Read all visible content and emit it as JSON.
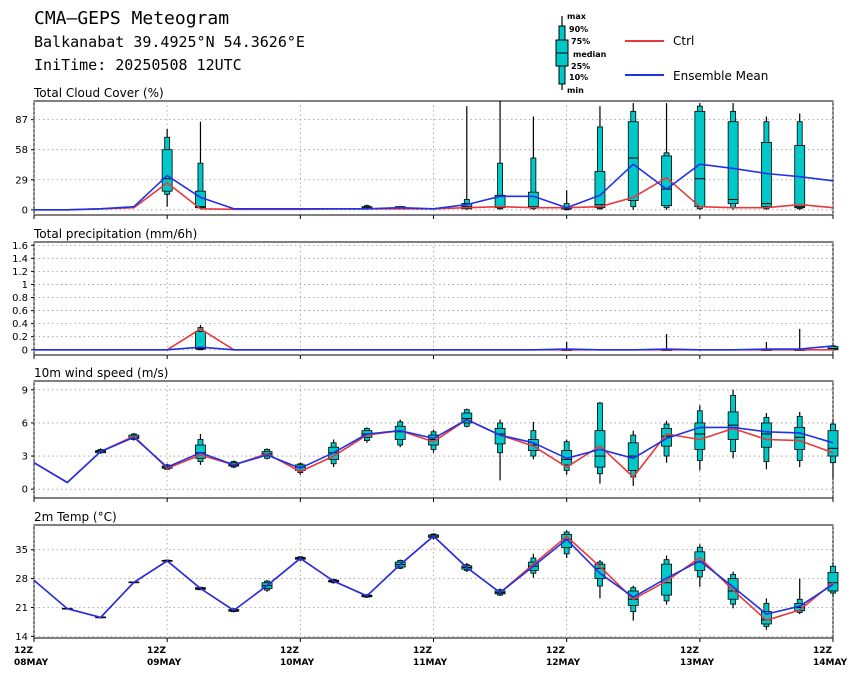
{
  "header": {
    "title": "CMA—GEPS Meteogram",
    "location": "Balkanabat 39.4925°N 54.3626°E",
    "init_time": "IniTime: 20250508 12UTC"
  },
  "legend": {
    "box_labels": [
      "max",
      "90%",
      "75%",
      "median",
      "25%",
      "10%",
      "min"
    ],
    "ctrl_label": "Ctrl",
    "mean_label": "Ensemble Mean",
    "ctrl_color": "#e8383d",
    "mean_color": "#1f32e8",
    "box_color": "#00c8c8"
  },
  "x_axis": {
    "ticks": [
      {
        "hour": "12Z",
        "date": "08MAY"
      },
      {
        "hour": "12Z",
        "date": "09MAY"
      },
      {
        "hour": "12Z",
        "date": "10MAY"
      },
      {
        "hour": "12Z",
        "date": "11MAY"
      },
      {
        "hour": "12Z",
        "date": "12MAY"
      },
      {
        "hour": "12Z",
        "date": "13MAY"
      },
      {
        "hour": "12Z",
        "date": "14MAY"
      }
    ]
  },
  "chart_data": [
    {
      "type": "boxplot-line",
      "title": "Total Cloud Cover (%)",
      "x": [
        "08MAY 12Z",
        "08MAY 18Z",
        "09MAY 00Z",
        "09MAY 06Z",
        "09MAY 12Z",
        "09MAY 18Z",
        "10MAY 00Z",
        "10MAY 06Z",
        "10MAY 12Z",
        "10MAY 18Z",
        "11MAY 00Z",
        "11MAY 06Z",
        "11MAY 12Z",
        "11MAY 18Z",
        "12MAY 00Z",
        "12MAY 06Z",
        "12MAY 12Z",
        "12MAY 18Z",
        "13MAY 00Z",
        "13MAY 06Z",
        "13MAY 12Z",
        "13MAY 18Z",
        "14MAY 00Z",
        "14MAY 06Z",
        "14MAY 12Z"
      ],
      "yticks": [
        0,
        29,
        58,
        87
      ],
      "ylim": [
        -5,
        105
      ],
      "ctrl": [
        0,
        0,
        1,
        2,
        26,
        1,
        0.5,
        0.5,
        0.5,
        1,
        1,
        1,
        1,
        2,
        3,
        2,
        2,
        3,
        12,
        31,
        3,
        2,
        2,
        5,
        2
      ],
      "mean": [
        0,
        0,
        1,
        3,
        33,
        12,
        1,
        1,
        1,
        1,
        1,
        2,
        1,
        5,
        13,
        13,
        2,
        14,
        44,
        20,
        44,
        40,
        35,
        32,
        28
      ],
      "boxes": [
        null,
        null,
        null,
        null,
        [
          3,
          15,
          18,
          30,
          58,
          70,
          78
        ],
        [
          1,
          2,
          2,
          3,
          18,
          45,
          85
        ],
        null,
        null,
        null,
        null,
        [
          0,
          1,
          1,
          2,
          3,
          4,
          5
        ],
        [
          1,
          1,
          1,
          2,
          3,
          3,
          3
        ],
        null,
        [
          0,
          1,
          1,
          3,
          6,
          10,
          100
        ],
        [
          0,
          1,
          2,
          3,
          14,
          45,
          105
        ],
        [
          0,
          1,
          2,
          3,
          17,
          50,
          90
        ],
        [
          0,
          0,
          1,
          1,
          2,
          6,
          19
        ],
        [
          0,
          1,
          2,
          5,
          37,
          80,
          100
        ],
        [
          0,
          3,
          9,
          50,
          85,
          95,
          103
        ],
        [
          0,
          2,
          4,
          20,
          52,
          55,
          103
        ],
        [
          0,
          1,
          3,
          30,
          95,
          100,
          103
        ],
        [
          0,
          2,
          6,
          10,
          85,
          95,
          103
        ],
        [
          0,
          1,
          3,
          6,
          65,
          85,
          90
        ],
        [
          0,
          1,
          2,
          3,
          62,
          85,
          93
        ]
      ]
    },
    {
      "type": "boxplot-line",
      "title": "Total precipitation (mm/6h)",
      "x": [
        "08MAY 12Z",
        "08MAY 18Z",
        "09MAY 00Z",
        "09MAY 06Z",
        "09MAY 12Z",
        "09MAY 18Z",
        "10MAY 00Z",
        "10MAY 06Z",
        "10MAY 12Z",
        "10MAY 18Z",
        "11MAY 00Z",
        "11MAY 06Z",
        "11MAY 12Z",
        "11MAY 18Z",
        "12MAY 00Z",
        "12MAY 06Z",
        "12MAY 12Z",
        "12MAY 18Z",
        "13MAY 00Z",
        "13MAY 06Z",
        "13MAY 12Z",
        "13MAY 18Z",
        "14MAY 00Z",
        "14MAY 06Z",
        "14MAY 12Z"
      ],
      "yticks": [
        0,
        0.2,
        0.4,
        0.6,
        0.8,
        1,
        1.2,
        1.4,
        1.6
      ],
      "ytick_labels": [
        "0",
        "0.2",
        "0.4",
        "0.6",
        "0.8",
        "1",
        "1.2",
        "1.4",
        "1.6"
      ],
      "ylim": [
        -0.08,
        1.65
      ],
      "ctrl": [
        0,
        0,
        0,
        0,
        0,
        0.32,
        0,
        0,
        0,
        0,
        0,
        0,
        0,
        0,
        0,
        0,
        0,
        0,
        0,
        0,
        0,
        0,
        0,
        0,
        0
      ],
      "mean": [
        0,
        0,
        0,
        0,
        0,
        0.04,
        0,
        0,
        0,
        0,
        0,
        0,
        0,
        0,
        0,
        0,
        0.01,
        0,
        0,
        0.01,
        0,
        0,
        0.01,
        0.01,
        0.06
      ],
      "boxes": [
        null,
        null,
        null,
        null,
        null,
        [
          0,
          0,
          0.01,
          0.02,
          0.28,
          0.34,
          0.38
        ],
        null,
        null,
        null,
        null,
        null,
        null,
        null,
        null,
        null,
        null,
        [
          0,
          0,
          0,
          0,
          0,
          0,
          0.12
        ],
        null,
        null,
        [
          0,
          0,
          0,
          0,
          0,
          0,
          0.24
        ],
        null,
        null,
        [
          0,
          0,
          0,
          0,
          0,
          0,
          0.12
        ],
        [
          0,
          0,
          0,
          0,
          0,
          0,
          0.32
        ],
        [
          0,
          0,
          0,
          0.02,
          0.05,
          0.06,
          0.07
        ]
      ]
    },
    {
      "type": "boxplot-line",
      "title": "10m wind speed (m/s)",
      "x": [
        "08MAY 12Z",
        "08MAY 18Z",
        "09MAY 00Z",
        "09MAY 06Z",
        "09MAY 12Z",
        "09MAY 18Z",
        "10MAY 00Z",
        "10MAY 06Z",
        "10MAY 12Z",
        "10MAY 18Z",
        "11MAY 00Z",
        "11MAY 06Z",
        "11MAY 12Z",
        "11MAY 18Z",
        "12MAY 00Z",
        "12MAY 06Z",
        "12MAY 12Z",
        "12MAY 18Z",
        "13MAY 00Z",
        "13MAY 06Z",
        "13MAY 12Z",
        "13MAY 18Z",
        "14MAY 00Z",
        "14MAY 06Z",
        "14MAY 12Z"
      ],
      "yticks": [
        0,
        3,
        6,
        9
      ],
      "ylim": [
        -0.8,
        9.8
      ],
      "ctrl": [
        2.4,
        0.6,
        3.4,
        4.8,
        1.9,
        3.1,
        2.2,
        3.2,
        1.6,
        3.0,
        4.9,
        5.3,
        4.3,
        6.3,
        4.9,
        3.9,
        2.0,
        3.9,
        1.1,
        5.0,
        4.5,
        5.5,
        4.5,
        4.4,
        3.3
      ],
      "mean": [
        2.4,
        0.6,
        3.4,
        4.7,
        2.0,
        3.3,
        2.2,
        3.1,
        1.9,
        3.3,
        5.0,
        5.3,
        4.6,
        6.3,
        4.9,
        4.2,
        2.8,
        3.6,
        2.8,
        4.6,
        5.6,
        5.6,
        5.2,
        5.1,
        4.2
      ],
      "boxes": [
        null,
        null,
        [
          3.2,
          3.3,
          3.3,
          3.4,
          3.5,
          3.6,
          3.7
        ],
        [
          4.4,
          4.5,
          4.6,
          4.7,
          4.9,
          5.0,
          5.1
        ],
        [
          1.8,
          1.8,
          1.9,
          2.0,
          2.1,
          2.2,
          2.3
        ],
        [
          2.2,
          2.5,
          2.8,
          3.3,
          4.0,
          4.5,
          5.0
        ],
        [
          1.9,
          2.0,
          2.1,
          2.2,
          2.4,
          2.5,
          2.6
        ],
        [
          2.7,
          2.8,
          3.0,
          3.2,
          3.4,
          3.6,
          3.7
        ],
        [
          1.3,
          1.5,
          1.7,
          2.0,
          2.2,
          2.3,
          2.4
        ],
        [
          2.0,
          2.3,
          2.7,
          3.3,
          3.8,
          4.2,
          4.5
        ],
        [
          4.2,
          4.4,
          4.7,
          5.0,
          5.3,
          5.5,
          5.6
        ],
        [
          3.8,
          4.0,
          4.5,
          5.2,
          5.7,
          6.1,
          6.3
        ],
        [
          3.3,
          3.6,
          4.0,
          4.5,
          4.9,
          5.2,
          5.4
        ],
        [
          5.6,
          5.7,
          6.0,
          6.4,
          6.9,
          7.2,
          7.3
        ],
        [
          0.8,
          3.3,
          4.1,
          5.0,
          5.5,
          6.0,
          6.3
        ],
        [
          2.7,
          3.0,
          3.5,
          4.0,
          4.5,
          5.3,
          6.1
        ],
        [
          1.3,
          1.7,
          2.2,
          2.7,
          3.5,
          4.3,
          4.5
        ],
        [
          0.5,
          1.4,
          2.0,
          3.0,
          5.3,
          7.8,
          7.9
        ],
        [
          0.3,
          1.1,
          1.7,
          3.0,
          4.2,
          4.9,
          5.3
        ],
        [
          2.4,
          3.0,
          3.9,
          4.8,
          5.5,
          5.9,
          6.2
        ],
        [
          1.7,
          2.6,
          3.6,
          5.0,
          6.0,
          7.1,
          7.6
        ],
        [
          2.8,
          3.4,
          4.5,
          5.8,
          7.0,
          8.5,
          9.0
        ],
        [
          1.8,
          2.5,
          3.8,
          5.0,
          6.0,
          6.5,
          6.9
        ],
        [
          2.0,
          2.6,
          3.6,
          4.7,
          5.6,
          6.6,
          7.0
        ],
        [
          1.0,
          2.4,
          3.0,
          3.7,
          5.3,
          5.9,
          6.3
        ]
      ]
    },
    {
      "type": "boxplot-line",
      "title": "2m Temp (°C)",
      "x": [
        "08MAY 12Z",
        "08MAY 18Z",
        "09MAY 00Z",
        "09MAY 06Z",
        "09MAY 12Z",
        "09MAY 18Z",
        "10MAY 00Z",
        "10MAY 06Z",
        "10MAY 12Z",
        "10MAY 18Z",
        "11MAY 00Z",
        "11MAY 06Z",
        "11MAY 12Z",
        "11MAY 18Z",
        "12MAY 00Z",
        "12MAY 06Z",
        "12MAY 12Z",
        "12MAY 18Z",
        "13MAY 00Z",
        "13MAY 06Z",
        "13MAY 12Z",
        "13MAY 18Z",
        "14MAY 00Z",
        "14MAY 06Z",
        "14MAY 12Z"
      ],
      "yticks": [
        14,
        21,
        28,
        35
      ],
      "ylim": [
        13.6,
        41.0
      ],
      "ctrl": [
        27.6,
        20.7,
        18.6,
        27.1,
        32.3,
        25.6,
        20.3,
        26.3,
        32.9,
        27.4,
        23.8,
        31.4,
        38.3,
        30.7,
        24.6,
        31.5,
        38.2,
        30.9,
        23.0,
        27.4,
        33.1,
        25.2,
        17.9,
        20.4,
        27.0
      ],
      "mean": [
        27.6,
        20.7,
        18.6,
        27.1,
        32.3,
        25.6,
        20.3,
        26.3,
        32.9,
        27.4,
        23.8,
        31.4,
        38.3,
        30.7,
        24.6,
        31.0,
        37.5,
        29.3,
        23.5,
        28.1,
        32.3,
        26.0,
        19.4,
        21.3,
        26.6
      ],
      "boxes": [
        null,
        [
          20.5,
          20.6,
          20.6,
          20.7,
          20.8,
          20.8,
          20.9
        ],
        [
          18.4,
          18.5,
          18.5,
          18.6,
          18.7,
          18.7,
          18.8
        ],
        [
          26.9,
          27.0,
          27.0,
          27.1,
          27.2,
          27.2,
          27.3
        ],
        [
          32.0,
          32.1,
          32.2,
          32.3,
          32.4,
          32.5,
          32.6
        ],
        [
          25.2,
          25.3,
          25.4,
          25.6,
          25.8,
          25.9,
          26.0
        ],
        [
          19.8,
          20.0,
          20.1,
          20.3,
          20.5,
          20.7,
          20.8
        ],
        [
          24.8,
          25.2,
          25.6,
          26.3,
          27.0,
          27.4,
          27.7
        ],
        [
          32.3,
          32.5,
          32.7,
          32.9,
          33.1,
          33.3,
          33.4
        ],
        [
          26.8,
          27.0,
          27.2,
          27.4,
          27.6,
          27.8,
          28.0
        ],
        [
          23.3,
          23.5,
          23.6,
          23.8,
          24.0,
          24.1,
          24.3
        ],
        [
          30.3,
          30.5,
          30.8,
          31.4,
          32.0,
          32.4,
          32.6
        ],
        [
          37.5,
          37.8,
          38.0,
          38.3,
          38.6,
          38.8,
          39.0
        ],
        [
          29.6,
          30.0,
          30.3,
          30.7,
          31.1,
          31.4,
          31.8
        ],
        [
          23.8,
          24.0,
          24.3,
          24.6,
          25.0,
          25.3,
          25.6
        ],
        [
          28.2,
          29.3,
          30.0,
          31.0,
          32.0,
          33.0,
          34.0
        ],
        [
          33.0,
          34.0,
          35.5,
          37.5,
          38.7,
          39.3,
          39.7
        ],
        [
          23.2,
          26.2,
          28.0,
          30.5,
          31.5,
          32.0,
          32.5
        ],
        [
          17.8,
          20.0,
          21.5,
          23.0,
          25.0,
          25.8,
          26.3
        ],
        [
          21.7,
          22.6,
          24.0,
          27.0,
          31.5,
          32.6,
          33.6
        ],
        [
          26.0,
          28.4,
          30.0,
          32.0,
          34.5,
          35.6,
          36.3
        ],
        [
          20.8,
          21.8,
          23.0,
          25.0,
          28.0,
          29.0,
          29.7
        ],
        [
          15.6,
          16.4,
          17.0,
          18.0,
          20.0,
          22.0,
          23.2
        ],
        [
          19.4,
          19.8,
          20.2,
          21.0,
          22.0,
          23.0,
          28.0
        ],
        [
          23.5,
          24.5,
          25.0,
          27.0,
          29.5,
          31.0,
          32.0
        ]
      ]
    }
  ]
}
